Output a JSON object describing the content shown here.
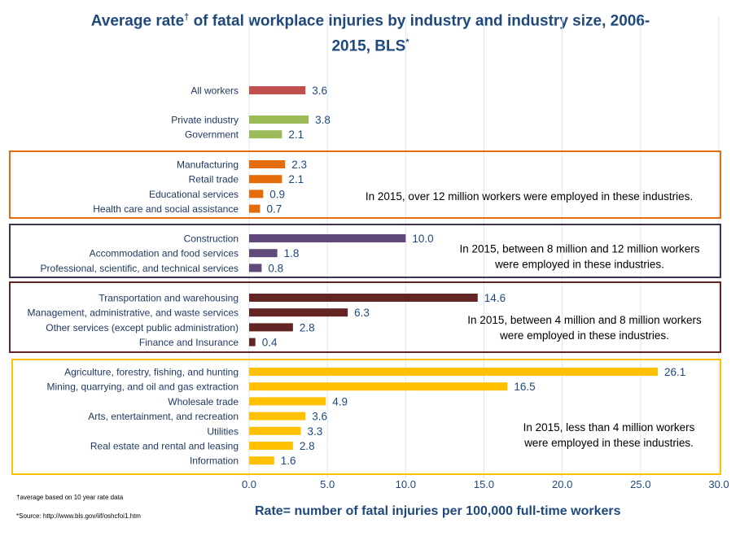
{
  "chart_data": {
    "type": "bar",
    "orientation": "horizontal",
    "title": "Average rate† of fatal workplace injuries by industry and industry size,  2006-2015, BLS*",
    "title_main": "Average rate",
    "title_dagger": "†",
    "title_rest": " of fatal workplace injuries by industry and industry size,  2006-",
    "title_line2": "2015, BLS",
    "title_star": "*",
    "xlabel": "Rate= number of fatal injuries per 100,000 full-time workers",
    "xlim": [
      0,
      30
    ],
    "xticks": [
      "0.0",
      "5.0",
      "10.0",
      "15.0",
      "20.0",
      "25.0",
      "30.0"
    ],
    "grid": true,
    "groups": [
      {
        "color": "#c0504d",
        "box": false,
        "categories": [
          "All workers"
        ],
        "values": [
          3.6
        ]
      },
      {
        "color": "#9bbb59",
        "box": false,
        "categories": [
          "Private industry",
          "Government"
        ],
        "values": [
          3.8,
          2.1
        ]
      },
      {
        "color": "#e46c0a",
        "box": true,
        "box_color": "#e46c0a",
        "note": [
          "In 2015,  over 12 million workers  were employed in these industries."
        ],
        "categories": [
          "Manufacturing",
          "Retail trade",
          "Educational services",
          "Health care and social assistance"
        ],
        "values": [
          2.3,
          2.1,
          0.9,
          0.7
        ]
      },
      {
        "color": "#604a7b",
        "box": true,
        "box_color": "#403151",
        "note": [
          "In 2015, between 8 million and 12 million workers",
          "were employed in these industries."
        ],
        "categories": [
          "Construction",
          "Accommodation and food services",
          "Professional, scientific, and technical services"
        ],
        "values": [
          10.0,
          1.8,
          0.8
        ]
      },
      {
        "color": "#632523",
        "box": true,
        "box_color": "#632523",
        "note": [
          "In 2015, between 4 million and 8 million workers",
          "were employed in these industries."
        ],
        "categories": [
          "Transportation and warehousing",
          "Management, administrative, and waste services",
          "Other services (except public administration)",
          "Finance and Insurance"
        ],
        "values": [
          14.6,
          6.3,
          2.8,
          0.4
        ]
      },
      {
        "color": "#ffc000",
        "box": true,
        "box_color": "#ffc000",
        "note": [
          "In 2015,  less than 4 million workers",
          "were employed in these industries."
        ],
        "categories": [
          "Agriculture, forestry, fishing, and hunting",
          "Mining, quarrying, and oil and gas extraction",
          "Wholesale trade",
          "Arts, entertainment, and recreation",
          "Utilities",
          "Real estate and rental and leasing",
          "Information"
        ],
        "values": [
          26.1,
          16.5,
          4.9,
          3.6,
          3.3,
          2.8,
          1.6
        ]
      }
    ]
  },
  "footnotes": {
    "dagger": "†average based on 10 year rate data",
    "source": "*Source: http://www.bls.gov/iif/oshcfoi1.htm"
  }
}
